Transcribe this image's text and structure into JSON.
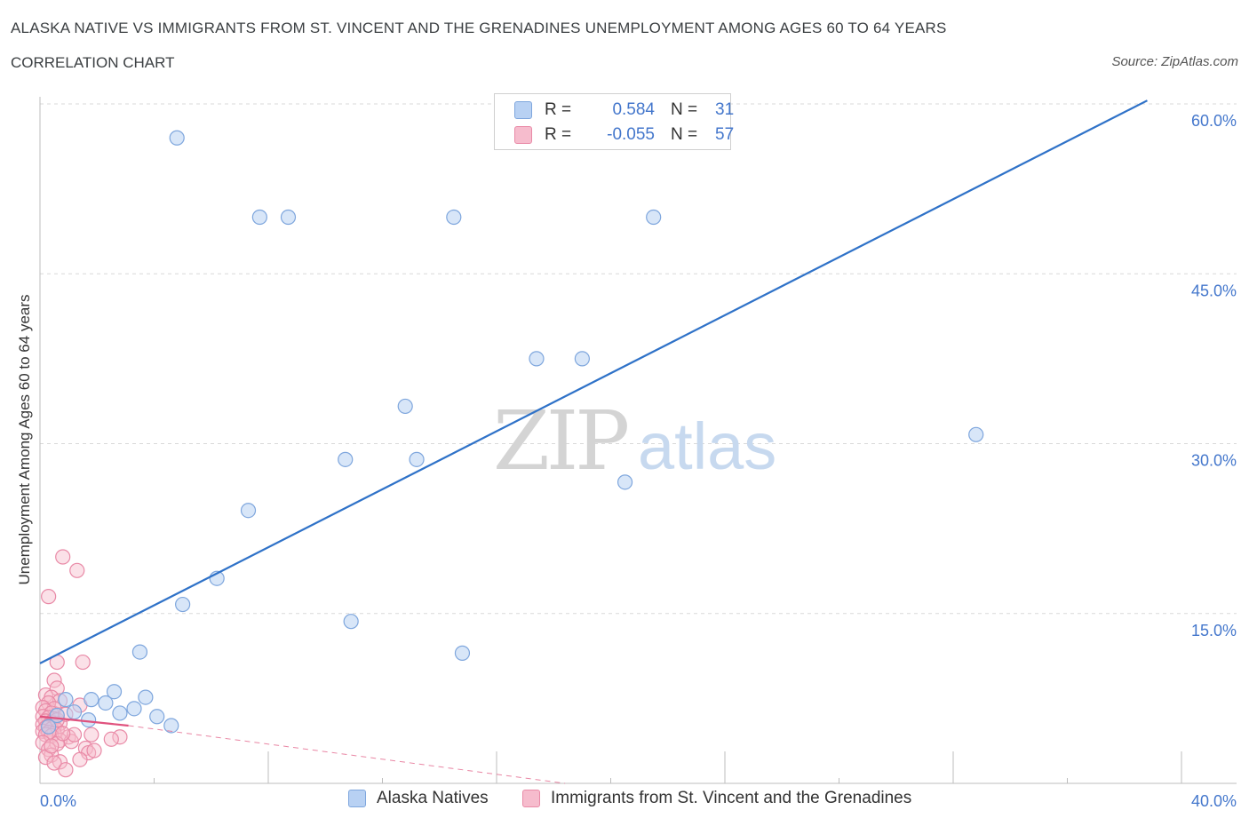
{
  "header": {
    "title": "ALASKA NATIVE VS IMMIGRANTS FROM ST. VINCENT AND THE GRENADINES UNEMPLOYMENT AMONG AGES 60 TO 64 YEARS",
    "subtitle": "CORRELATION CHART",
    "source": "Source: ZipAtlas.com"
  },
  "watermark": {
    "zip": "ZIP",
    "atlas": "atlas"
  },
  "colors": {
    "blue_fill": "#b8d1f3",
    "blue_stroke": "#7ea6dd",
    "blue_line": "#2f72c8",
    "pink_fill": "#f6bccd",
    "pink_stroke": "#e98aa7",
    "pink_line": "#e0527e",
    "axis_label": "#4477cc",
    "grid": "#d9d9d9"
  },
  "stats": {
    "rows": [
      {
        "r_label": "R =",
        "r_value": "0.584",
        "n_label": "N =",
        "n_value": "31"
      },
      {
        "r_label": "R =",
        "r_value": "-0.055",
        "n_label": "N =",
        "n_value": "57"
      }
    ]
  },
  "legend": {
    "series1": "Alaska Natives",
    "series2": "Immigrants from St. Vincent and the Grenadines"
  },
  "chart_data": {
    "type": "scatter",
    "title": "ALASKA NATIVE VS IMMIGRANTS FROM ST. VINCENT AND THE GRENADINES UNEMPLOYMENT AMONG AGES 60 TO 64 YEARS",
    "xlabel": "",
    "ylabel": "Unemployment Among Ages 60 to 64 years",
    "xlim": [
      0,
      40
    ],
    "ylim": [
      0,
      60
    ],
    "x_ticks": [
      0,
      4,
      8,
      12,
      16,
      20,
      24,
      28,
      32,
      36,
      40
    ],
    "x_tick_labels": {
      "0": "0.0%",
      "40": "40.0%"
    },
    "y_ticks": [
      15,
      30,
      45,
      60
    ],
    "y_tick_labels": [
      "15.0%",
      "30.0%",
      "45.0%",
      "60.0%"
    ],
    "grid": true,
    "series": [
      {
        "name": "Alaska Natives",
        "R": 0.584,
        "N": 31,
        "trend": {
          "x": [
            0,
            38.8
          ],
          "y": [
            10.6,
            60.3
          ],
          "style": "solid"
        },
        "points": [
          [
            4.8,
            57.0
          ],
          [
            7.7,
            50.0
          ],
          [
            8.7,
            50.0
          ],
          [
            14.5,
            50.0
          ],
          [
            21.5,
            50.0
          ],
          [
            17.4,
            37.5
          ],
          [
            19.0,
            37.5
          ],
          [
            12.8,
            33.3
          ],
          [
            32.8,
            30.8
          ],
          [
            10.7,
            28.6
          ],
          [
            13.2,
            28.6
          ],
          [
            20.5,
            26.6
          ],
          [
            7.3,
            24.1
          ],
          [
            6.2,
            18.1
          ],
          [
            5.0,
            15.8
          ],
          [
            10.9,
            14.3
          ],
          [
            3.5,
            11.6
          ],
          [
            14.8,
            11.5
          ],
          [
            2.6,
            8.1
          ],
          [
            1.8,
            7.4
          ],
          [
            3.7,
            7.6
          ],
          [
            0.9,
            7.4
          ],
          [
            2.3,
            7.1
          ],
          [
            3.3,
            6.6
          ],
          [
            2.8,
            6.2
          ],
          [
            4.1,
            5.9
          ],
          [
            1.2,
            6.3
          ],
          [
            0.6,
            6.0
          ],
          [
            1.7,
            5.6
          ],
          [
            4.6,
            5.1
          ],
          [
            0.3,
            5.0
          ]
        ]
      },
      {
        "name": "Immigrants from St. Vincent and the Grenadines",
        "R": -0.055,
        "N": 57,
        "trend": {
          "x": [
            0,
            3.1
          ],
          "y": [
            5.9,
            5.1
          ],
          "style": "solid"
        },
        "trend_extended": {
          "x": [
            3.1,
            18.4
          ],
          "y": [
            5.1,
            0.0
          ],
          "style": "dashed"
        },
        "points": [
          [
            0.8,
            20.0
          ],
          [
            1.3,
            18.8
          ],
          [
            0.3,
            16.5
          ],
          [
            0.6,
            10.7
          ],
          [
            1.5,
            10.7
          ],
          [
            0.5,
            9.1
          ],
          [
            0.6,
            8.4
          ],
          [
            0.2,
            7.8
          ],
          [
            0.4,
            7.6
          ],
          [
            0.7,
            7.3
          ],
          [
            0.3,
            7.1
          ],
          [
            1.4,
            6.9
          ],
          [
            0.1,
            6.7
          ],
          [
            0.5,
            6.6
          ],
          [
            0.2,
            6.4
          ],
          [
            0.4,
            6.2
          ],
          [
            0.6,
            6.0
          ],
          [
            0.1,
            5.9
          ],
          [
            0.3,
            5.8
          ],
          [
            0.5,
            5.7
          ],
          [
            0.2,
            5.5
          ],
          [
            0.4,
            5.4
          ],
          [
            0.7,
            5.3
          ],
          [
            0.1,
            5.2
          ],
          [
            0.3,
            5.1
          ],
          [
            0.5,
            5.0
          ],
          [
            0.2,
            4.9
          ],
          [
            0.4,
            4.8
          ],
          [
            0.6,
            4.7
          ],
          [
            0.1,
            4.6
          ],
          [
            0.3,
            4.5
          ],
          [
            0.5,
            4.4
          ],
          [
            0.2,
            4.3
          ],
          [
            0.4,
            4.2
          ],
          [
            1.0,
            4.1
          ],
          [
            1.8,
            4.3
          ],
          [
            2.8,
            4.1
          ],
          [
            2.5,
            3.9
          ],
          [
            0.7,
            3.8
          ],
          [
            1.1,
            3.7
          ],
          [
            0.1,
            3.6
          ],
          [
            0.6,
            3.5
          ],
          [
            1.6,
            3.1
          ],
          [
            0.3,
            3.0
          ],
          [
            1.7,
            2.7
          ],
          [
            0.4,
            2.5
          ],
          [
            0.2,
            2.3
          ],
          [
            1.4,
            2.1
          ],
          [
            0.7,
            1.9
          ],
          [
            0.5,
            1.8
          ],
          [
            0.9,
            1.2
          ],
          [
            1.2,
            4.3
          ],
          [
            0.8,
            4.4
          ],
          [
            0.4,
            3.3
          ],
          [
            1.9,
            2.9
          ],
          [
            0.6,
            5.6
          ],
          [
            0.9,
            6.1
          ]
        ]
      }
    ]
  }
}
